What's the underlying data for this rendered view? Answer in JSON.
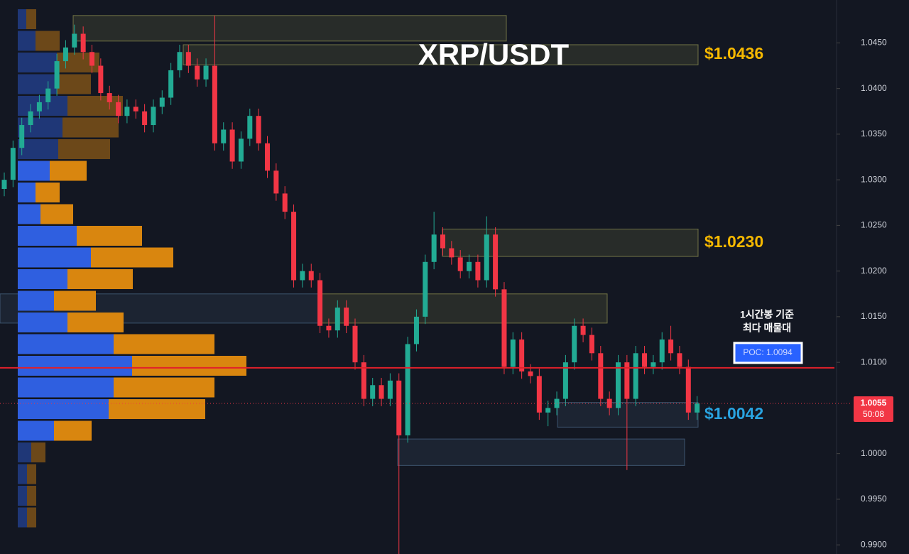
{
  "chart_data": {
    "type": "candlestick",
    "title": "XRP/USDT",
    "ylim": [
      0.989,
      1.0497
    ],
    "yticks": [
      {
        "value": 0.99,
        "label": "0.9900"
      },
      {
        "value": 0.995,
        "label": "0.9950"
      },
      {
        "value": 1.0,
        "label": "1.0000"
      },
      {
        "value": 1.01,
        "label": "1.0100"
      },
      {
        "value": 1.015,
        "label": "1.0150"
      },
      {
        "value": 1.02,
        "label": "1.0200"
      },
      {
        "value": 1.025,
        "label": "1.0250"
      },
      {
        "value": 1.03,
        "label": "1.0300"
      },
      {
        "value": 1.035,
        "label": "1.0350"
      },
      {
        "value": 1.04,
        "label": "1.0400"
      },
      {
        "value": 1.045,
        "label": "1.0450"
      }
    ],
    "up_color": "#22ab94",
    "down_color": "#f23645",
    "open": [
      1.029,
      1.03,
      1.0335,
      1.036,
      1.0375,
      1.0385,
      1.04,
      1.043,
      1.0445,
      1.046,
      1.044,
      1.0425,
      1.0395,
      1.0385,
      1.037,
      1.038,
      1.0375,
      1.036,
      1.038,
      1.039,
      1.042,
      1.044,
      1.0425,
      1.041,
      1.0425,
      1.034,
      1.0355,
      1.032,
      1.0345,
      1.037,
      1.034,
      1.031,
      1.0285,
      1.0265,
      1.019,
      1.02,
      1.019,
      1.014,
      1.0135,
      1.016,
      1.014,
      1.01,
      1.006,
      1.0075,
      1.006,
      1.008,
      1.002,
      1.012,
      1.015,
      1.021,
      1.024,
      1.0225,
      1.0215,
      1.02,
      1.021,
      1.019,
      1.024,
      1.018,
      1.0095,
      1.0125,
      1.009,
      1.0085,
      1.0045,
      1.005,
      1.006,
      1.01,
      1.014,
      1.013,
      1.011,
      1.006,
      1.005,
      1.01,
      1.006,
      1.011,
      1.0095,
      1.01,
      1.0125,
      1.011,
      1.0095,
      1.0045
    ],
    "high": [
      1.0308,
      1.0343,
      1.0368,
      1.0383,
      1.0393,
      1.0408,
      1.0438,
      1.0453,
      1.047,
      1.0468,
      1.0448,
      1.0433,
      1.0403,
      1.0393,
      1.0388,
      1.0388,
      1.0383,
      1.0388,
      1.0398,
      1.0428,
      1.0448,
      1.0448,
      1.0433,
      1.0433,
      1.048,
      1.0363,
      1.0363,
      1.0353,
      1.0378,
      1.0378,
      1.0348,
      1.0318,
      1.0293,
      1.0273,
      1.0208,
      1.0208,
      1.0198,
      1.0148,
      1.0168,
      1.0168,
      1.0148,
      1.0108,
      1.0083,
      1.0083,
      1.0088,
      1.0088,
      1.0128,
      1.0158,
      1.0218,
      1.0265,
      1.0248,
      1.0233,
      1.0223,
      1.0218,
      1.0218,
      1.026,
      1.0248,
      1.0188,
      1.0133,
      1.0133,
      1.0098,
      1.0093,
      1.0058,
      1.0068,
      1.0108,
      1.0148,
      1.0148,
      1.0138,
      1.0118,
      1.0068,
      1.0108,
      1.0108,
      1.0118,
      1.0118,
      1.0108,
      1.0133,
      1.014,
      1.0118,
      1.0103,
      1.0063
    ],
    "low": [
      1.0282,
      1.0292,
      1.0327,
      1.0352,
      1.0367,
      1.0377,
      1.0392,
      1.0422,
      1.0437,
      1.0432,
      1.0417,
      1.0387,
      1.0377,
      1.0362,
      1.0362,
      1.0367,
      1.0352,
      1.0352,
      1.0372,
      1.0382,
      1.0412,
      1.0417,
      1.0402,
      1.0402,
      1.0332,
      1.0332,
      1.0312,
      1.0312,
      1.0337,
      1.0332,
      1.0302,
      1.0277,
      1.0257,
      1.0182,
      1.0182,
      1.0182,
      1.0132,
      1.0127,
      1.0127,
      1.0132,
      1.0092,
      1.0052,
      1.0052,
      1.0052,
      1.0052,
      0.989,
      1.0012,
      1.0112,
      1.0142,
      1.0202,
      1.0217,
      1.0207,
      1.0192,
      1.0192,
      1.0182,
      1.0182,
      1.0172,
      1.0087,
      1.0087,
      1.0082,
      1.0077,
      1.0037,
      1.003,
      1.0042,
      1.0052,
      1.0092,
      1.0122,
      1.0102,
      1.0052,
      1.0042,
      1.0042,
      0.9982,
      1.0052,
      1.0087,
      1.0087,
      1.0092,
      1.0102,
      1.0087,
      1.0037,
      1.0037
    ],
    "close": [
      1.03,
      1.0335,
      1.036,
      1.0375,
      1.0385,
      1.04,
      1.043,
      1.0445,
      1.046,
      1.044,
      1.0425,
      1.0395,
      1.0385,
      1.037,
      1.038,
      1.0375,
      1.036,
      1.038,
      1.039,
      1.042,
      1.044,
      1.0425,
      1.041,
      1.0425,
      1.034,
      1.0355,
      1.032,
      1.0345,
      1.037,
      1.034,
      1.031,
      1.0285,
      1.0265,
      1.019,
      1.02,
      1.019,
      1.014,
      1.0135,
      1.016,
      1.014,
      1.01,
      1.006,
      1.0075,
      1.006,
      1.008,
      1.002,
      1.012,
      1.015,
      1.021,
      1.024,
      1.0225,
      1.0215,
      1.02,
      1.021,
      1.019,
      1.024,
      1.018,
      1.0095,
      1.0125,
      1.009,
      1.0085,
      1.0045,
      1.005,
      1.006,
      1.01,
      1.014,
      1.013,
      1.011,
      1.006,
      1.005,
      1.01,
      1.006,
      1.011,
      1.0095,
      1.01,
      1.0125,
      1.011,
      1.0095,
      1.0045,
      1.0055
    ],
    "volume_profile": {
      "up_color": "#2f5fe0",
      "down_color": "#d9860f",
      "up": [
        12,
        25,
        55,
        55,
        70,
        63,
        57,
        45,
        25,
        32,
        83,
        103,
        70,
        51,
        70,
        135,
        161,
        135,
        128,
        51,
        19,
        13,
        13,
        13
      ],
      "down": [
        14,
        34,
        60,
        48,
        78,
        79,
        73,
        52,
        34,
        46,
        92,
        116,
        92,
        59,
        79,
        142,
        161,
        142,
        136,
        53,
        20,
        13,
        13,
        13
      ]
    },
    "zones": [
      {
        "range": [
          1.0452,
          1.048
        ],
        "color": "#b8b860"
      },
      {
        "range": [
          1.0426,
          1.0448
        ],
        "color": "#b8b860",
        "label": "$1.0436",
        "label_color": "#f5b800"
      },
      {
        "range": [
          1.0216,
          1.0246
        ],
        "color": "#b8b860",
        "label": "$1.0230",
        "label_color": "#f5b800"
      },
      {
        "range": [
          1.0143,
          1.0175
        ],
        "color": "#5b7fa6"
      },
      {
        "range": [
          1.0143,
          1.0175
        ],
        "color": "#b8b860"
      },
      {
        "range": [
          1.0029,
          1.0056
        ],
        "color": "#5b7fa6",
        "label": "$1.0042",
        "label_color": "#29a3e0"
      },
      {
        "range": [
          0.9987,
          1.0016
        ],
        "color": "#5b7fa6"
      }
    ],
    "poc": {
      "value": 1.0094,
      "label": "POC: 1.0094",
      "color": "#e0202a",
      "note": [
        "1시간봉 기준",
        "최다 매물대"
      ]
    },
    "current_price": 1.0055,
    "countdown": "50:08"
  }
}
